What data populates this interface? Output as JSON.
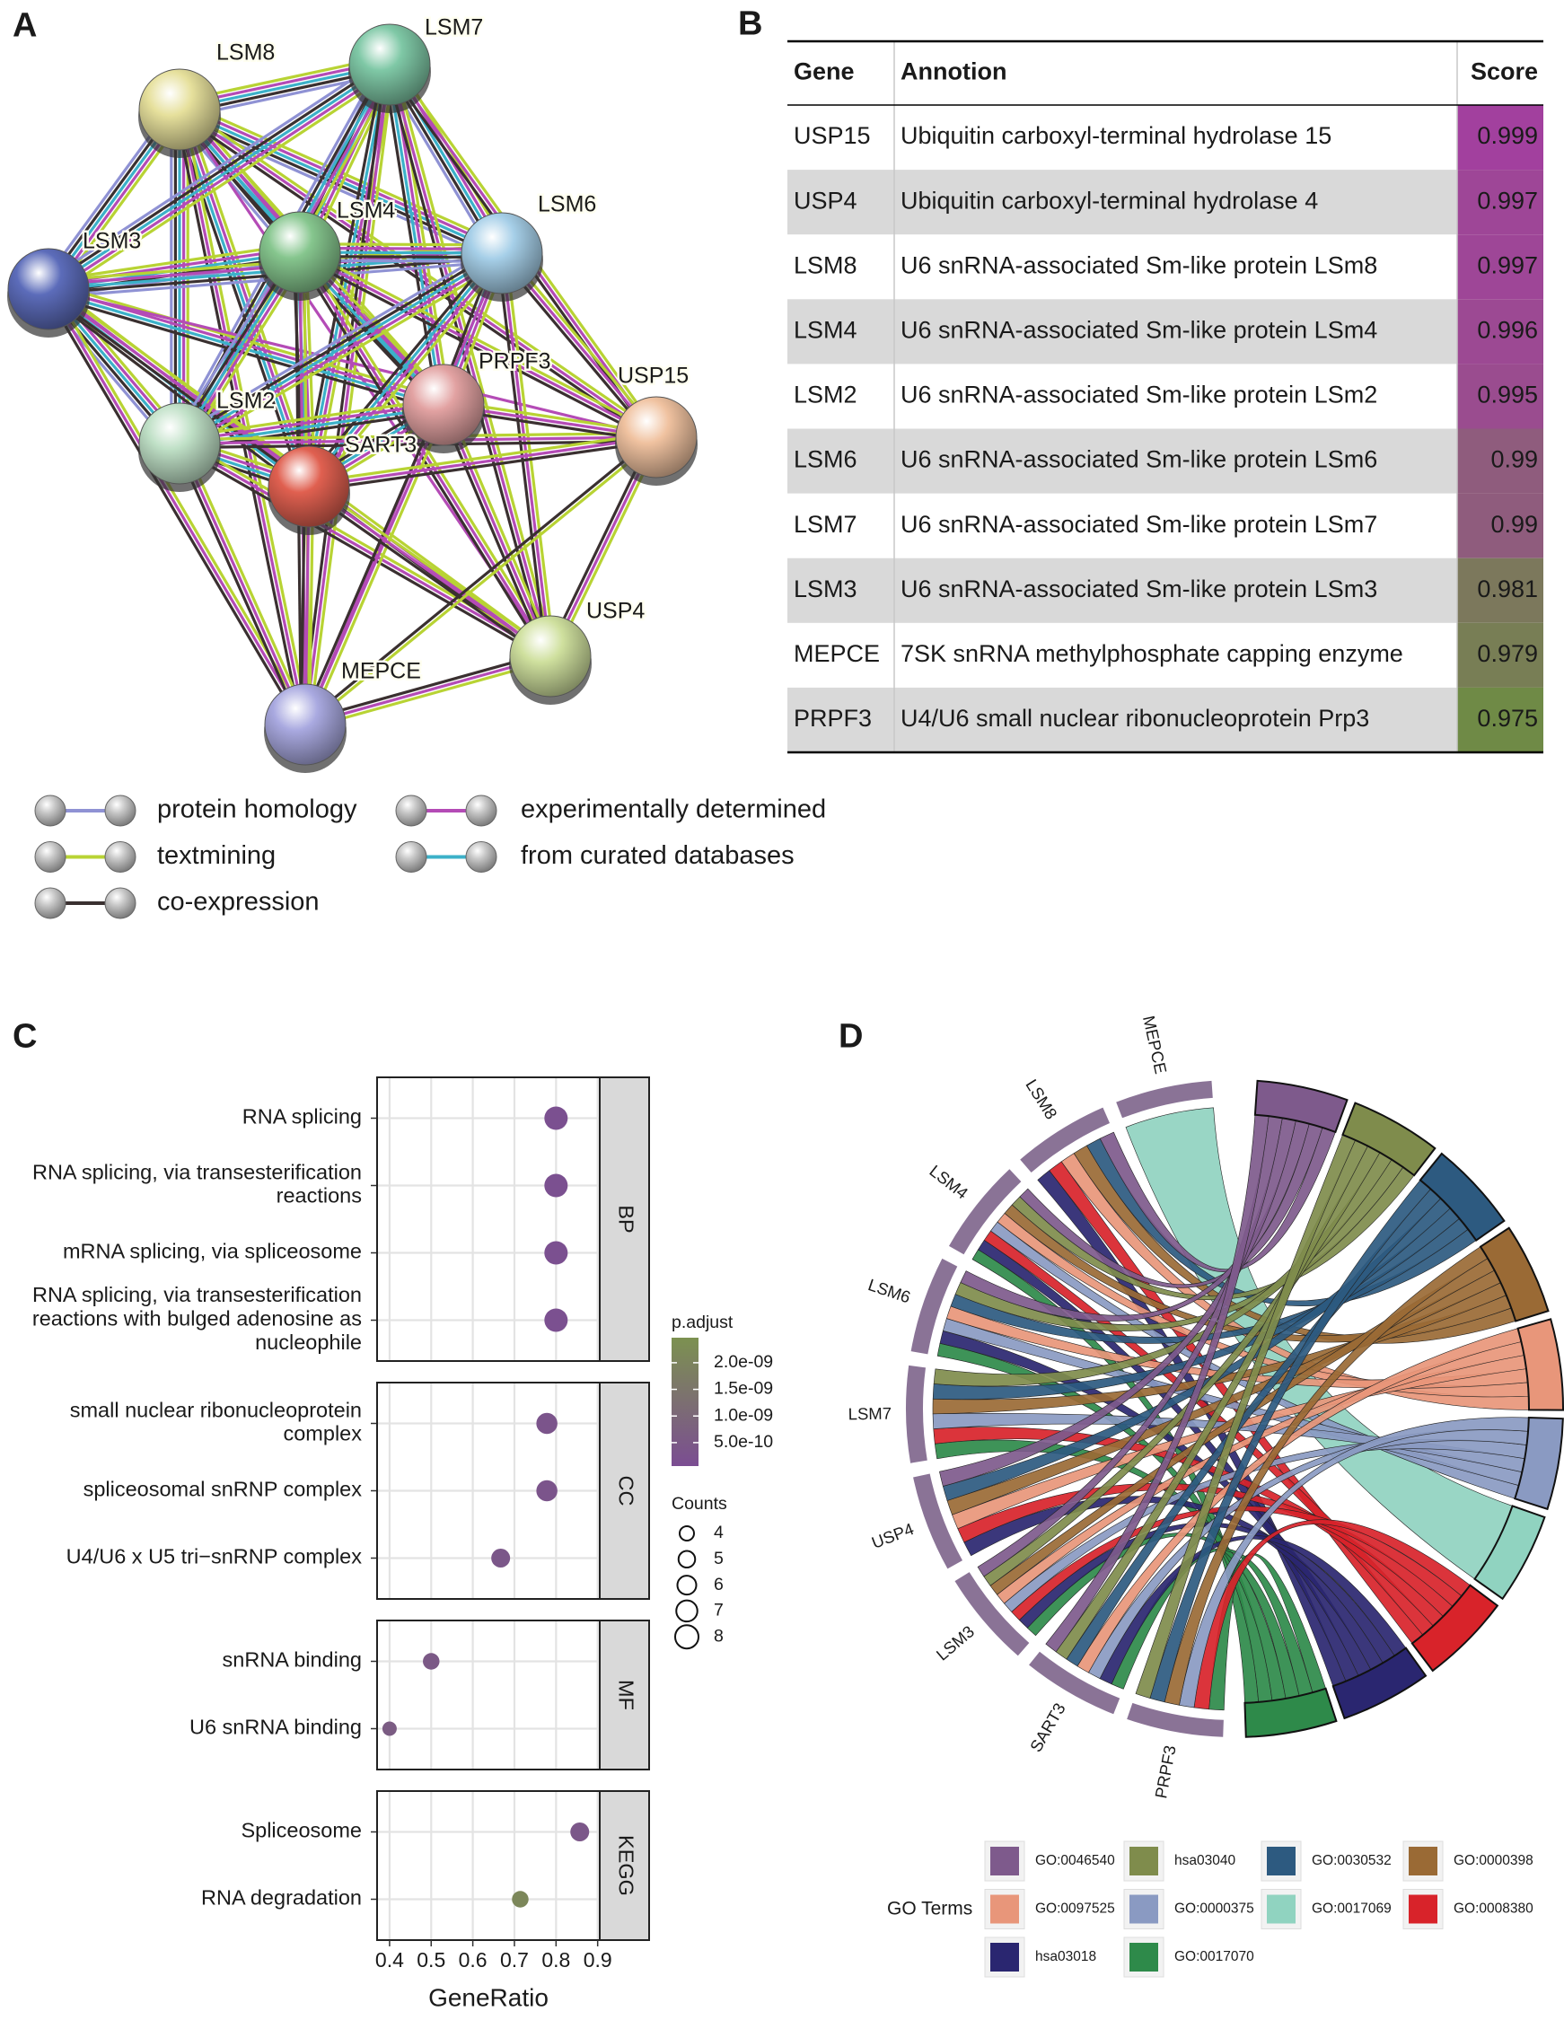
{
  "panels": [
    "A",
    "B",
    "C",
    "D"
  ],
  "network": {
    "nodes": [
      "LSM8",
      "LSM7",
      "LSM3",
      "LSM4",
      "LSM6",
      "LSM2",
      "PRPF3",
      "SART3",
      "USP15",
      "USP4",
      "MEPCE"
    ],
    "legend": [
      {
        "label": "protein homology",
        "color": "#8f92d4"
      },
      {
        "label": "experimentally determined",
        "color": "#b44bb6"
      },
      {
        "label": "textmining",
        "color": "#b8d334"
      },
      {
        "label": "from curated databases",
        "color": "#3cb1c9"
      },
      {
        "label": "co-expression",
        "color": "#3a3030"
      }
    ]
  },
  "table": {
    "columns": [
      "Gene",
      "Annotion",
      "Score"
    ],
    "rows": [
      [
        "USP15",
        "Ubiquitin carboxyl-terminal hydrolase 15",
        0.999
      ],
      [
        "USP4",
        "Ubiquitin carboxyl-terminal hydrolase 4",
        0.997
      ],
      [
        "LSM8",
        "U6 snRNA-associated Sm-like protein LSm8",
        0.997
      ],
      [
        "LSM4",
        "U6 snRNA-associated Sm-like protein LSm4",
        0.996
      ],
      [
        "LSM2",
        "U6 snRNA-associated Sm-like protein LSm2",
        0.995
      ],
      [
        "LSM6",
        "U6 snRNA-associated Sm-like protein LSm6",
        0.99
      ],
      [
        "LSM7",
        "U6 snRNA-associated Sm-like protein LSm7",
        0.99
      ],
      [
        "LSM3",
        "U6 snRNA-associated Sm-like protein LSm3",
        0.981
      ],
      [
        "MEPCE",
        "7SK snRNA methylphosphate capping enzyme",
        0.979
      ],
      [
        "PRPF3",
        "U4/U6 small nuclear ribonucleoprotein Prp3",
        0.975
      ]
    ],
    "score_colors": [
      "#6f8a46",
      "#a2409e"
    ]
  },
  "chart_data": {
    "type": "dot",
    "x_label": "GeneRatio",
    "xlim": [
      0.37,
      0.905
    ],
    "xticks": [
      0.4,
      0.5,
      0.6,
      0.7,
      0.8,
      0.9
    ],
    "grid": true,
    "facets": [
      {
        "name": "BP",
        "categories": [
          "RNA splicing",
          "RNA splicing, via transesterification\nreactions",
          "mRNA splicing, via spliceosome",
          "RNA splicing, via transesterification\nreactions with bulged adenosine as\nnucleophile"
        ],
        "values": [
          0.8,
          0.8,
          0.8,
          0.8
        ],
        "counts": [
          8,
          8,
          8,
          8
        ],
        "p_adjust": [
          1.5e-10,
          1.5e-10,
          1.5e-10,
          1.5e-10
        ]
      },
      {
        "name": "CC",
        "categories": [
          "small nuclear ribonucleoprotein\ncomplex",
          "spliceosomal snRNP complex",
          "U4/U6 x U5 tri−snRNP complex"
        ],
        "values": [
          0.778,
          0.778,
          0.667
        ],
        "counts": [
          7,
          7,
          6
        ],
        "p_adjust": [
          3e-10,
          3e-10,
          4e-10
        ]
      },
      {
        "name": "MF",
        "categories": [
          "snRNA binding",
          "U6 snRNA binding"
        ],
        "values": [
          0.5,
          0.4
        ],
        "counts": [
          5,
          4
        ],
        "p_adjust": [
          5e-10,
          6e-10
        ]
      },
      {
        "name": "KEGG",
        "categories": [
          "Spliceosome",
          "RNA degradation"
        ],
        "values": [
          0.857,
          0.714
        ],
        "counts": [
          6,
          5
        ],
        "p_adjust": [
          4e-10,
          2.1e-09
        ]
      }
    ],
    "color_legend": {
      "title": "p.adjust",
      "lim": [
        6e-11,
        2.47e-09
      ],
      "ticks": [
        {
          "value": 2e-09,
          "label": "2.0e-09"
        },
        {
          "value": 1.5e-09,
          "label": "1.5e-09"
        },
        {
          "value": 1e-09,
          "label": "1.0e-09"
        },
        {
          "value": 5e-10,
          "label": "5.0e-10"
        }
      ],
      "colors": [
        "#7b4d92",
        "#7c9150"
      ]
    },
    "size_legend": {
      "title": "Counts",
      "values": [
        4,
        5,
        6,
        7,
        8
      ]
    }
  },
  "chord": {
    "genes": [
      "MEPCE",
      "LSM8",
      "LSM4",
      "LSM6",
      "LSM7",
      "USP4",
      "LSM3",
      "SART3",
      "PRPF3"
    ],
    "legend_title": "GO Terms",
    "terms": [
      {
        "name": "GO:0046540",
        "color": "#7e5a8c"
      },
      {
        "name": "hsa03040",
        "color": "#7f8c4c"
      },
      {
        "name": "GO:0030532",
        "color": "#2d5a80"
      },
      {
        "name": "GO:0000398",
        "color": "#9a6a35"
      },
      {
        "name": "GO:0097525",
        "color": "#e8967a"
      },
      {
        "name": "GO:0000375",
        "color": "#8a9ac2"
      },
      {
        "name": "GO:0017069",
        "color": "#90d3c0"
      },
      {
        "name": "GO:0008380",
        "color": "#d8232a"
      },
      {
        "name": "hsa03018",
        "color": "#2a2670"
      },
      {
        "name": "GO:0017070",
        "color": "#2e8a4a"
      }
    ]
  }
}
